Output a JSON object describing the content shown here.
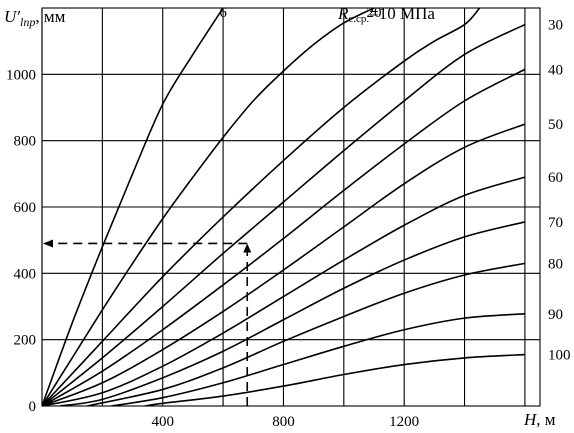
{
  "chart_data": {
    "type": "line",
    "ylabel_main": "U′",
    "ylabel_sub": "lпр",
    "ylabel_unit": ", мм",
    "xlabel_main": "H",
    "xlabel_unit": ", м",
    "xlim": [
      0,
      1650
    ],
    "ylim": [
      0,
      1200
    ],
    "x_ticks": [
      400,
      800,
      1200
    ],
    "y_ticks": [
      0,
      200,
      400,
      600,
      800,
      1000
    ],
    "x_grid": [
      0,
      200,
      400,
      600,
      800,
      1000,
      1200,
      1400,
      1600
    ],
    "y_grid": [
      0,
      200,
      400,
      600,
      800,
      1000,
      1200
    ],
    "grid": true,
    "top_label_main": "R",
    "top_label_sub": "с.ср.",
    "top_label_text": "=10 МПа",
    "series": [
      {
        "label": "6",
        "points": [
          [
            0,
            0
          ],
          [
            100,
            250
          ],
          [
            200,
            480
          ],
          [
            300,
            700
          ],
          [
            400,
            910
          ],
          [
            500,
            1060
          ],
          [
            600,
            1200
          ]
        ]
      },
      {
        "label": "20",
        "points": [
          [
            0,
            0
          ],
          [
            100,
            145
          ],
          [
            200,
            290
          ],
          [
            300,
            430
          ],
          [
            400,
            565
          ],
          [
            500,
            690
          ],
          [
            600,
            810
          ],
          [
            700,
            920
          ],
          [
            800,
            1010
          ],
          [
            900,
            1090
          ],
          [
            1000,
            1155
          ],
          [
            1100,
            1200
          ]
        ]
      },
      {
        "label": "",
        "points": [
          [
            0,
            0
          ],
          [
            200,
            195
          ],
          [
            400,
            390
          ],
          [
            600,
            570
          ],
          [
            800,
            740
          ],
          [
            1000,
            900
          ],
          [
            1200,
            1040
          ],
          [
            1300,
            1100
          ],
          [
            1400,
            1150
          ],
          [
            1450,
            1200
          ]
        ]
      },
      {
        "label": "30",
        "points": [
          [
            0,
            0
          ],
          [
            200,
            145
          ],
          [
            400,
            300
          ],
          [
            600,
            460
          ],
          [
            800,
            615
          ],
          [
            1000,
            770
          ],
          [
            1200,
            920
          ],
          [
            1400,
            1060
          ],
          [
            1600,
            1150
          ]
        ]
      },
      {
        "label": "40",
        "points": [
          [
            0,
            0
          ],
          [
            200,
            105
          ],
          [
            400,
            230
          ],
          [
            600,
            365
          ],
          [
            800,
            505
          ],
          [
            1000,
            650
          ],
          [
            1200,
            790
          ],
          [
            1400,
            920
          ],
          [
            1600,
            1015
          ]
        ]
      },
      {
        "label": "50",
        "points": [
          [
            0,
            0
          ],
          [
            200,
            70
          ],
          [
            400,
            170
          ],
          [
            600,
            285
          ],
          [
            800,
            410
          ],
          [
            1000,
            540
          ],
          [
            1200,
            670
          ],
          [
            1400,
            780
          ],
          [
            1600,
            850
          ]
        ]
      },
      {
        "label": "60",
        "points": [
          [
            0,
            0
          ],
          [
            200,
            40
          ],
          [
            400,
            120
          ],
          [
            600,
            220
          ],
          [
            800,
            330
          ],
          [
            1000,
            440
          ],
          [
            1200,
            545
          ],
          [
            1400,
            635
          ],
          [
            1600,
            690
          ]
        ]
      },
      {
        "label": "70",
        "points": [
          [
            60,
            0
          ],
          [
            200,
            20
          ],
          [
            400,
            85
          ],
          [
            600,
            165
          ],
          [
            800,
            260
          ],
          [
            1000,
            355
          ],
          [
            1200,
            440
          ],
          [
            1400,
            510
          ],
          [
            1600,
            555
          ]
        ]
      },
      {
        "label": "80",
        "points": [
          [
            150,
            0
          ],
          [
            400,
            50
          ],
          [
            600,
            115
          ],
          [
            800,
            195
          ],
          [
            1000,
            270
          ],
          [
            1200,
            340
          ],
          [
            1400,
            395
          ],
          [
            1600,
            430
          ]
        ]
      },
      {
        "label": "90",
        "points": [
          [
            230,
            0
          ],
          [
            400,
            25
          ],
          [
            600,
            70
          ],
          [
            800,
            125
          ],
          [
            1000,
            180
          ],
          [
            1200,
            230
          ],
          [
            1400,
            265
          ],
          [
            1600,
            278
          ]
        ]
      },
      {
        "label": "100",
        "points": [
          [
            340,
            0
          ],
          [
            400,
            8
          ],
          [
            600,
            30
          ],
          [
            800,
            60
          ],
          [
            1000,
            95
          ],
          [
            1200,
            125
          ],
          [
            1400,
            145
          ],
          [
            1600,
            155
          ]
        ]
      }
    ],
    "example": {
      "H": 680,
      "U": 490
    }
  }
}
